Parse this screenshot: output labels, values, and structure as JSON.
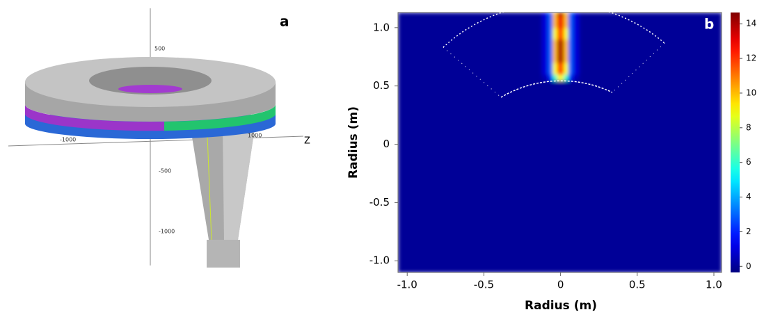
{
  "panel_a": {
    "label": "a",
    "axis_labels": [
      "500",
      "-500",
      "-1000",
      "-1000",
      "1000",
      "Z"
    ]
  },
  "chart_data": {
    "type": "heatmap",
    "label": "b",
    "xlabel": "Radius (m)",
    "ylabel": "Radius (m)",
    "xlim": [
      -1.06,
      1.05
    ],
    "ylim": [
      -1.1,
      1.13
    ],
    "xticks": [
      {
        "value": -1,
        "label": "-1.0"
      },
      -0.5,
      0,
      0.5,
      {
        "value": 1,
        "label": "1.0"
      }
    ],
    "yticks": [
      {
        "value": -1,
        "label": "-1.0"
      },
      -0.5,
      0,
      0.5,
      {
        "value": 1,
        "label": "1.0"
      }
    ],
    "x_edges": [
      -1.06,
      -0.12,
      -0.08,
      -0.05,
      -0.02,
      0.02,
      0.05,
      0.08,
      0.12,
      1.05
    ],
    "y_edges": [
      -1.1,
      0.55,
      0.6,
      0.7,
      0.8,
      0.9,
      1.0,
      1.1,
      1.13
    ],
    "z": [
      [
        0,
        0,
        0,
        0,
        0,
        0,
        0,
        0,
        0
      ],
      [
        0,
        0.5,
        2,
        6,
        9,
        6,
        2,
        0.5,
        0
      ],
      [
        0,
        1,
        3,
        9,
        12,
        9,
        3,
        1,
        0
      ],
      [
        0,
        1,
        3,
        10,
        14,
        10,
        3,
        1,
        0
      ],
      [
        0,
        1,
        3,
        10,
        14,
        10,
        3,
        1,
        0
      ],
      [
        0,
        1,
        3,
        9,
        12,
        9,
        3,
        1,
        0
      ],
      [
        0,
        1,
        3,
        10,
        13,
        10,
        3,
        1,
        0
      ],
      [
        0,
        1,
        3,
        10,
        14,
        10,
        3,
        1,
        0
      ]
    ],
    "clim": [
      -0.35,
      14.65
    ],
    "colorbar_ticks": [
      0,
      2,
      4,
      6,
      8,
      10,
      12,
      14
    ],
    "colormap": "jet"
  }
}
